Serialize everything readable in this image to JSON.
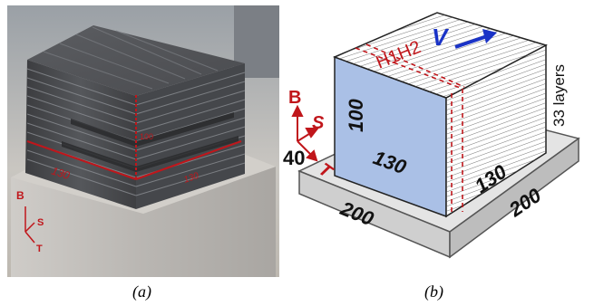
{
  "panel_a": {
    "caption": "(a)",
    "dims": {
      "width": "130",
      "depth": "130",
      "height": "100"
    },
    "axes": {
      "build": "B",
      "scan": "S",
      "transverse": "T"
    }
  },
  "panel_b": {
    "caption": "(b)",
    "dims": {
      "block_height": "100",
      "block_width": "130",
      "block_depth": "130",
      "plate_width": "200",
      "plate_depth": "200",
      "plate_thickness": "40"
    },
    "layers_label": "33 layers",
    "velocity_label": "V",
    "section_label": "H1H2",
    "axes": {
      "build": "B",
      "scan": "S",
      "transverse": "T"
    }
  },
  "colors": {
    "annotation_red": "#c0161b",
    "velocity_blue": "#1a33c7",
    "front_face": "#aac0e6",
    "plate": "#e4e4e4"
  }
}
